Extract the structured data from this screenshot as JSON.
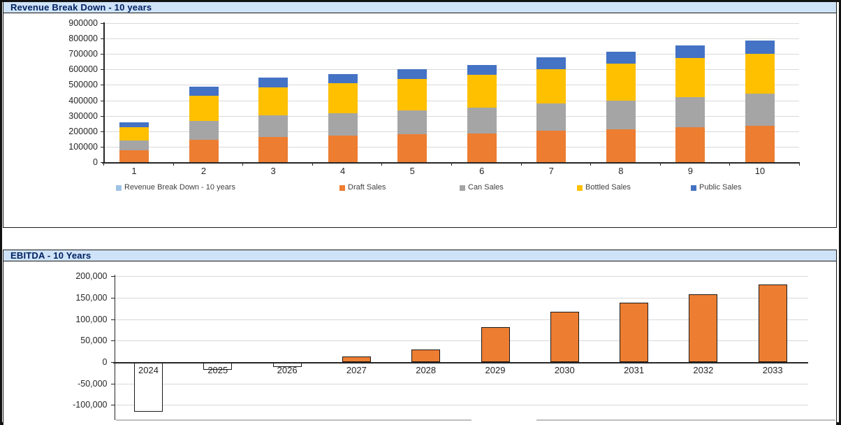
{
  "panels": {
    "revenue": {
      "title": "Revenue Break Down - 10 years"
    },
    "ebitda": {
      "title": "EBITDA - 10 Years"
    }
  },
  "colors": {
    "header_fill": "#cfe3f8",
    "header_text": "#002060",
    "gridline": "#d9d9d9",
    "axis": "#262626",
    "bar_border": "#1a1a1a",
    "draft_sales": "#ED7D31",
    "can_sales": "#A5A5A5",
    "bottled_sales": "#FFC000",
    "public_sales": "#4472C4",
    "revenue_legend_marker": "#9DC3E6",
    "ebitda_positive_fill": "#ED7D31",
    "ebitda_negative_fill": "#FFFFFF"
  },
  "chart_data": [
    {
      "type": "bar",
      "subtype": "stacked",
      "title": "Revenue Break Down - 10 years",
      "xlabel": "",
      "ylabel": "",
      "categories": [
        "1",
        "2",
        "3",
        "4",
        "5",
        "6",
        "7",
        "8",
        "9",
        "10"
      ],
      "series": [
        {
          "name": "Draft Sales",
          "color": "#ED7D31",
          "values": [
            77000,
            146000,
            161000,
            172000,
            179000,
            186000,
            204000,
            214000,
            225000,
            235000
          ]
        },
        {
          "name": "Can Sales",
          "color": "#A5A5A5",
          "values": [
            64000,
            122000,
            141000,
            146000,
            156000,
            165000,
            178000,
            186000,
            197000,
            206000
          ]
        },
        {
          "name": "Bottled Sales",
          "color": "#FFC000",
          "values": [
            85000,
            162000,
            184000,
            195000,
            205000,
            215000,
            221000,
            238000,
            252000,
            260000
          ]
        },
        {
          "name": "Public Sales",
          "color": "#4472C4",
          "values": [
            32000,
            57000,
            61000,
            56000,
            62000,
            63000,
            76000,
            78000,
            83000,
            86000
          ]
        }
      ],
      "stack_totals": [
        258000,
        487000,
        547000,
        569000,
        602000,
        629000,
        679000,
        716000,
        757000,
        787000
      ],
      "ylim": [
        0,
        900000
      ],
      "ytick_step": 100000,
      "ytick_labels": [
        "900000",
        "800000",
        "700000",
        "600000",
        "500000",
        "400000",
        "300000",
        "200000",
        "100000",
        "0"
      ],
      "grid": true,
      "legend_position": "bottom",
      "legend": [
        {
          "label": "Revenue Break Down - 10 years",
          "color": "#9DC3E6"
        },
        {
          "label": "Draft Sales",
          "color": "#ED7D31"
        },
        {
          "label": "Can Sales",
          "color": "#A5A5A5"
        },
        {
          "label": "Bottled Sales",
          "color": "#FFC000"
        },
        {
          "label": "Public Sales",
          "color": "#4472C4"
        }
      ]
    },
    {
      "type": "bar",
      "subtype": "single-series",
      "title": "EBITDA - 10 Years",
      "xlabel": "",
      "ylabel": "",
      "categories": [
        "2024",
        "2025",
        "2026",
        "2027",
        "2028",
        "2029",
        "2030",
        "2031",
        "2032",
        "2033"
      ],
      "values": [
        -115000,
        -18000,
        -12000,
        13000,
        29000,
        81000,
        117000,
        138000,
        158000,
        181000
      ],
      "positive_color": "#ED7D31",
      "negative_color": "#FFFFFF",
      "ylim": [
        -130000,
        200000
      ],
      "ytick_step": 50000,
      "ytick_labels": [
        "200,000",
        "150,000",
        "100,000",
        "50,000",
        "0",
        "-50,000",
        "-100,000"
      ],
      "grid": true,
      "legend_position": "none"
    }
  ]
}
